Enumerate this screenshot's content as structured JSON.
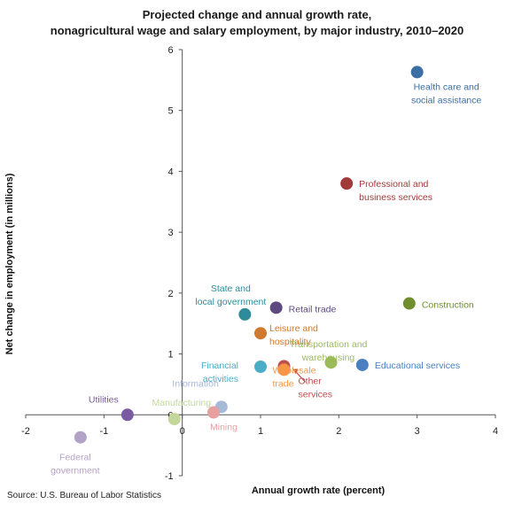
{
  "title_line1": "Projected change and annual growth rate,",
  "title_line2": "nonagricultural wage and salary employment, by major industry, 2010–2020",
  "source": "Source: U.S. Bureau of Labor Statistics",
  "chart_data": {
    "type": "scatter",
    "xlabel": "Annual growth rate (percent)",
    "ylabel": "Net change in employment (in millions)",
    "xlim": [
      -2,
      4
    ],
    "ylim": [
      -1,
      6
    ],
    "xticks": [
      -2,
      -1,
      0,
      1,
      2,
      3,
      4
    ],
    "yticks": [
      -1,
      0,
      1,
      2,
      3,
      4,
      5,
      6
    ],
    "grid": false,
    "points": [
      {
        "name": "Health care and\nsocial assistance",
        "x": 3.0,
        "y": 5.63,
        "color": "#3a6ea5"
      },
      {
        "name": "Professional and\nbusiness services",
        "x": 2.1,
        "y": 3.8,
        "color": "#a33a3a"
      },
      {
        "name": "Construction",
        "x": 2.9,
        "y": 1.83,
        "color": "#6f8f2f"
      },
      {
        "name": "Retail trade",
        "x": 1.2,
        "y": 1.76,
        "color": "#5e4a7e"
      },
      {
        "name": "State and\nlocal government",
        "x": 0.8,
        "y": 1.65,
        "color": "#2e8b9a"
      },
      {
        "name": "Leisure and\nhospitality",
        "x": 1.0,
        "y": 1.34,
        "color": "#d07a30"
      },
      {
        "name": "Transportation and\nwarehousing",
        "x": 1.9,
        "y": 0.86,
        "color": "#9bbb59"
      },
      {
        "name": "Educational services",
        "x": 2.3,
        "y": 0.82,
        "color": "#4a7fc1"
      },
      {
        "name": "Financial\nactivities",
        "x": 1.0,
        "y": 0.79,
        "color": "#4bacc6"
      },
      {
        "name": "Other\nservices",
        "x": 1.3,
        "y": 0.8,
        "color": "#c0504d"
      },
      {
        "name": "Wholesale\ntrade",
        "x": 1.3,
        "y": 0.74,
        "color": "#f79646"
      },
      {
        "name": "Information",
        "x": 0.5,
        "y": 0.13,
        "color": "#a6b9d6"
      },
      {
        "name": "Mining",
        "x": 0.4,
        "y": 0.04,
        "color": "#e6a0a0"
      },
      {
        "name": "Manufacturing",
        "x": -0.1,
        "y": -0.07,
        "color": "#c4d79b"
      },
      {
        "name": "Utilities",
        "x": -0.7,
        "y": 0.0,
        "color": "#7a5aa0"
      },
      {
        "name": "Federal\ngovernment",
        "x": -1.3,
        "y": -0.37,
        "color": "#b3a2c7"
      }
    ]
  }
}
